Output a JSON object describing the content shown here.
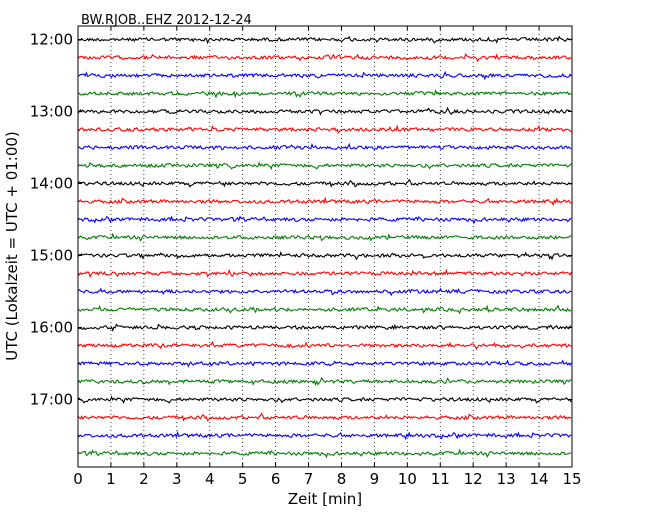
{
  "chart_data": {
    "type": "line",
    "title": "BW.RJOB..EHZ 2012-12-24",
    "xlabel": "Zeit  [min]",
    "ylabel": "UTC (Lokalzeit = UTC + 01:00)",
    "xlim": [
      0,
      15
    ],
    "x_ticks": [
      0,
      1,
      2,
      3,
      4,
      5,
      6,
      7,
      8,
      9,
      10,
      11,
      12,
      13,
      14,
      15
    ],
    "y_tick_labels": [
      "12:00",
      "13:00",
      "14:00",
      "15:00",
      "16:00",
      "17:00"
    ],
    "grid": "vertical dotted",
    "trace_interval_minutes": 15,
    "traces": [
      {
        "start": "12:00",
        "color": "#000000"
      },
      {
        "start": "12:15",
        "color": "#ff0000"
      },
      {
        "start": "12:30",
        "color": "#0000ff"
      },
      {
        "start": "12:45",
        "color": "#008000"
      },
      {
        "start": "13:00",
        "color": "#000000"
      },
      {
        "start": "13:15",
        "color": "#ff0000"
      },
      {
        "start": "13:30",
        "color": "#0000ff"
      },
      {
        "start": "13:45",
        "color": "#008000"
      },
      {
        "start": "14:00",
        "color": "#000000"
      },
      {
        "start": "14:15",
        "color": "#ff0000"
      },
      {
        "start": "14:30",
        "color": "#0000ff"
      },
      {
        "start": "14:45",
        "color": "#008000"
      },
      {
        "start": "15:00",
        "color": "#000000"
      },
      {
        "start": "15:15",
        "color": "#ff0000"
      },
      {
        "start": "15:30",
        "color": "#0000ff"
      },
      {
        "start": "15:45",
        "color": "#008000"
      },
      {
        "start": "16:00",
        "color": "#000000"
      },
      {
        "start": "16:15",
        "color": "#ff0000"
      },
      {
        "start": "16:30",
        "color": "#0000ff"
      },
      {
        "start": "16:45",
        "color": "#008000"
      },
      {
        "start": "17:00",
        "color": "#000000"
      },
      {
        "start": "17:15",
        "color": "#ff0000"
      },
      {
        "start": "17:30",
        "color": "#0000ff"
      },
      {
        "start": "17:45",
        "color": "#008000"
      }
    ]
  }
}
